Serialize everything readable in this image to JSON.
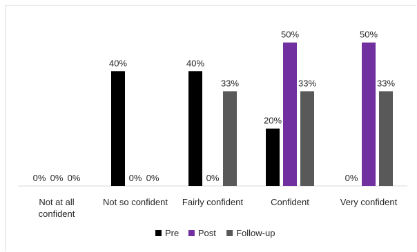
{
  "chart_data": {
    "type": "bar",
    "title": "",
    "xlabel": "",
    "ylabel": "",
    "ylim": [
      0,
      60
    ],
    "grid": false,
    "legend_position": "bottom",
    "categories": [
      "Not at all confident",
      "Not so confident",
      "Fairly confident",
      "Confident",
      "Very confident"
    ],
    "category_lines": [
      [
        "Not at all",
        "confident"
      ],
      [
        "Not so confident"
      ],
      [
        "Fairly confident"
      ],
      [
        "Confident"
      ],
      [
        "Very confident"
      ]
    ],
    "series": [
      {
        "name": "Pre",
        "color": "#000000",
        "values": [
          0,
          40,
          40,
          20,
          0
        ],
        "labels": [
          "0%",
          "40%",
          "40%",
          "20%",
          "0%"
        ]
      },
      {
        "name": "Post",
        "color": "#7030a0",
        "values": [
          0,
          0,
          0,
          50,
          50
        ],
        "labels": [
          "0%",
          "0%",
          "0%",
          "50%",
          "50%"
        ]
      },
      {
        "name": "Follow-up",
        "color": "#595959",
        "values": [
          0,
          0,
          33,
          33,
          33
        ],
        "labels": [
          "0%",
          "0%",
          "33%",
          "33%",
          "33%"
        ]
      }
    ]
  }
}
